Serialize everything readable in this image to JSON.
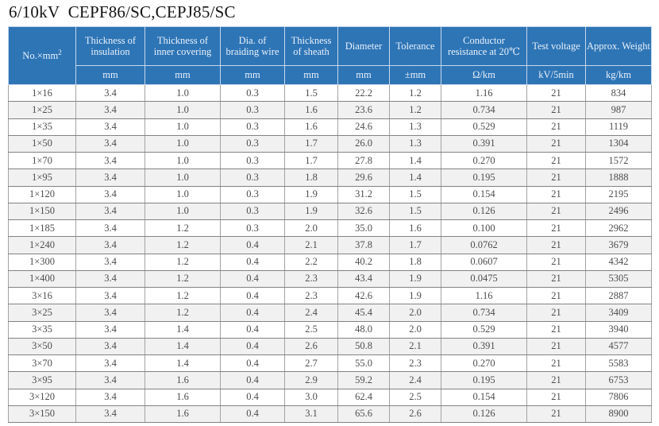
{
  "title": "6/10kV  CEPF86/SC,CEPJ85/SC",
  "colors": {
    "header_bg": "#2e75b6",
    "header_text": "#e9f1fa",
    "stripe": "#f1f1f1",
    "body_text": "#4d4d4d"
  },
  "table": {
    "columns": [
      {
        "label": "No.×mm",
        "sup": "2"
      },
      {
        "label": "Thickness of insulation"
      },
      {
        "label": "Thickness of inner covering"
      },
      {
        "label": "Dia. of braiding wire"
      },
      {
        "label": "Thickness of sheath"
      },
      {
        "label": "Diameter"
      },
      {
        "label": "Tolerance"
      },
      {
        "label": "Conductor resistance at 20℃"
      },
      {
        "label": "Test voltage"
      },
      {
        "label": "Approx. Weight"
      }
    ],
    "units": [
      "mm",
      "mm",
      "mm",
      "mm",
      "mm",
      "±mm",
      "Ω/km",
      "kV/5min",
      "kg/km"
    ],
    "rows": [
      [
        "1×16",
        "3.4",
        "1.0",
        "0.3",
        "1.5",
        "22.2",
        "1.2",
        "1.16",
        "21",
        "834"
      ],
      [
        "1×25",
        "3.4",
        "1.0",
        "0.3",
        "1.6",
        "23.6",
        "1.2",
        "0.734",
        "21",
        "987"
      ],
      [
        "1×35",
        "3.4",
        "1.0",
        "0.3",
        "1.6",
        "24.6",
        "1.3",
        "0.529",
        "21",
        "1119"
      ],
      [
        "1×50",
        "3.4",
        "1.0",
        "0.3",
        "1.7",
        "26.0",
        "1.3",
        "0.391",
        "21",
        "1304"
      ],
      [
        "1×70",
        "3.4",
        "1.0",
        "0.3",
        "1.7",
        "27.8",
        "1.4",
        "0.270",
        "21",
        "1572"
      ],
      [
        "1×95",
        "3.4",
        "1.0",
        "0.3",
        "1.8",
        "29.6",
        "1.4",
        "0.195",
        "21",
        "1888"
      ],
      [
        "1×120",
        "3.4",
        "1.0",
        "0.3",
        "1.9",
        "31.2",
        "1.5",
        "0.154",
        "21",
        "2195"
      ],
      [
        "1×150",
        "3.4",
        "1.0",
        "0.3",
        "1.9",
        "32.6",
        "1.5",
        "0.126",
        "21",
        "2496"
      ],
      [
        "1×185",
        "3.4",
        "1.2",
        "0.3",
        "2.0",
        "35.0",
        "1.6",
        "0.100",
        "21",
        "2962"
      ],
      [
        "1×240",
        "3.4",
        "1.2",
        "0.4",
        "2.1",
        "37.8",
        "1.7",
        "0.0762",
        "21",
        "3679"
      ],
      [
        "1×300",
        "3.4",
        "1.2",
        "0.4",
        "2.2",
        "40.2",
        "1.8",
        "0.0607",
        "21",
        "4342"
      ],
      [
        "1×400",
        "3.4",
        "1.2",
        "0.4",
        "2.3",
        "43.4",
        "1.9",
        "0.0475",
        "21",
        "5305"
      ],
      [
        "3×16",
        "3.4",
        "1.2",
        "0.4",
        "2.3",
        "42.6",
        "1.9",
        "1.16",
        "21",
        "2887"
      ],
      [
        "3×25",
        "3.4",
        "1.2",
        "0.4",
        "2.4",
        "45.4",
        "2.0",
        "0.734",
        "21",
        "3409"
      ],
      [
        "3×35",
        "3.4",
        "1.4",
        "0.4",
        "2.5",
        "48.0",
        "2.0",
        "0.529",
        "21",
        "3940"
      ],
      [
        "3×50",
        "3.4",
        "1.4",
        "0.4",
        "2.6",
        "50.8",
        "2.1",
        "0.391",
        "21",
        "4577"
      ],
      [
        "3×70",
        "3.4",
        "1.4",
        "0.4",
        "2.7",
        "55.0",
        "2.3",
        "0.270",
        "21",
        "5583"
      ],
      [
        "3×95",
        "3.4",
        "1.6",
        "0.4",
        "2.9",
        "59.2",
        "2.4",
        "0.195",
        "21",
        "6753"
      ],
      [
        "3×120",
        "3.4",
        "1.6",
        "0.4",
        "3.0",
        "62.4",
        "2.5",
        "0.154",
        "21",
        "7806"
      ],
      [
        "3×150",
        "3.4",
        "1.6",
        "0.4",
        "3.1",
        "65.6",
        "2.6",
        "0.126",
        "21",
        "8900"
      ]
    ]
  }
}
